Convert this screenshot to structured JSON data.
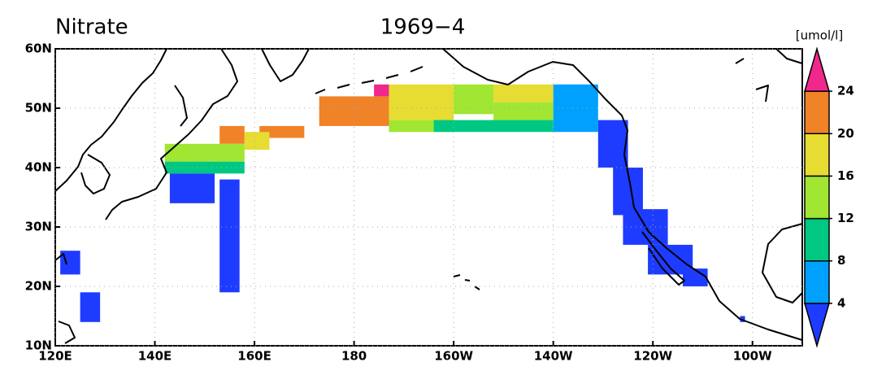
{
  "title": "Nitrate",
  "date": "1969−4",
  "unit": "[umol/l]",
  "lonlim": [
    120,
    270
  ],
  "latlim": [
    10,
    60
  ],
  "lon_ticks": [
    {
      "value": 120,
      "label": "120E"
    },
    {
      "value": 140,
      "label": "140E"
    },
    {
      "value": 160,
      "label": "160E"
    },
    180,
    {
      "value": 200,
      "label": "160W"
    },
    {
      "value": 220,
      "label": "140W"
    },
    {
      "value": 240,
      "label": "120W"
    },
    {
      "value": 260,
      "label": "100W"
    }
  ],
  "lat_ticks": [
    {
      "value": 10,
      "label": "10N"
    },
    {
      "value": 20,
      "label": "20N"
    },
    {
      "value": 30,
      "label": "30N"
    },
    {
      "value": 40,
      "label": "40N"
    },
    {
      "value": 50,
      "label": "50N"
    },
    {
      "value": 60,
      "label": "60N"
    }
  ],
  "colorbar": {
    "levels": [
      4,
      8,
      12,
      16,
      20,
      24
    ],
    "colors": [
      "#1e3cff",
      "#00a0ff",
      "#00c882",
      "#a0e632",
      "#e6dc32",
      "#f08228",
      "#f0288c"
    ]
  },
  "patches": [
    {
      "lon": [
        173,
        187
      ],
      "lat": [
        47,
        52
      ],
      "value": 22
    },
    {
      "lon": [
        184,
        187
      ],
      "lat": [
        52,
        54
      ],
      "value": 26
    },
    {
      "lon": [
        187,
        200
      ],
      "lat": [
        48,
        54
      ],
      "value": 18
    },
    {
      "lon": [
        200,
        208
      ],
      "lat": [
        49,
        54
      ],
      "value": 14
    },
    {
      "lon": [
        187,
        200
      ],
      "lat": [
        46,
        48
      ],
      "value": 14
    },
    {
      "lon": [
        208,
        220
      ],
      "lat": [
        51,
        54
      ],
      "value": 17
    },
    {
      "lon": [
        208,
        220
      ],
      "lat": [
        48,
        51
      ],
      "value": 13
    },
    {
      "lon": [
        196,
        220
      ],
      "lat": [
        46,
        48
      ],
      "value": 10
    },
    {
      "lon": [
        220,
        229
      ],
      "lat": [
        46,
        54
      ],
      "value": 6
    },
    {
      "lon": [
        153,
        158
      ],
      "lat": [
        44,
        47
      ],
      "value": 22
    },
    {
      "lon": [
        161,
        170
      ],
      "lat": [
        45,
        47
      ],
      "value": 22
    },
    {
      "lon": [
        158,
        163
      ],
      "lat": [
        43,
        46
      ],
      "value": 18
    },
    {
      "lon": [
        142,
        158
      ],
      "lat": [
        41,
        44
      ],
      "value": 14
    },
    {
      "lon": [
        142,
        158
      ],
      "lat": [
        39,
        41
      ],
      "value": 10
    },
    {
      "lon": [
        143,
        152
      ],
      "lat": [
        34,
        39
      ],
      "value": 2
    },
    {
      "lon": [
        153,
        157
      ],
      "lat": [
        19,
        38
      ],
      "value": 2
    },
    {
      "lon": [
        121,
        125
      ],
      "lat": [
        22,
        26
      ],
      "value": 2
    },
    {
      "lon": [
        125,
        129
      ],
      "lat": [
        14,
        19
      ],
      "value": 2
    },
    {
      "lon": [
        229,
        235
      ],
      "lat": [
        40,
        48
      ],
      "value": 2
    },
    {
      "lon": [
        232,
        238
      ],
      "lat": [
        32,
        40
      ],
      "value": 2
    },
    {
      "lon": [
        234,
        243
      ],
      "lat": [
        27,
        33
      ],
      "value": 2
    },
    {
      "lon": [
        239,
        248
      ],
      "lat": [
        22,
        27
      ],
      "value": 2
    },
    {
      "lon": [
        246,
        251
      ],
      "lat": [
        20,
        23
      ],
      "value": 2
    },
    {
      "lon": [
        257.5,
        258.5
      ],
      "lat": [
        14,
        15
      ],
      "value": 2
    }
  ]
}
